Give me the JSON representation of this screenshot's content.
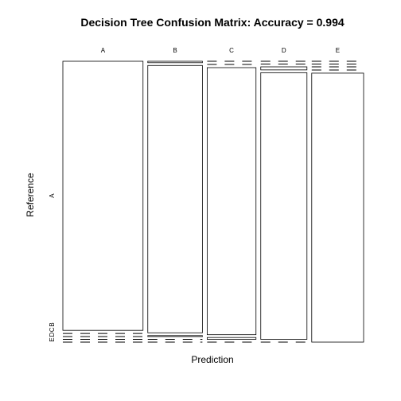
{
  "chart_data": {
    "type": "mosaic",
    "title": "Decision Tree Confusion Matrix: Accuracy = 0.994",
    "xlabel": "Prediction",
    "ylabel": "Reference",
    "prediction_levels": [
      "A",
      "B",
      "C",
      "D",
      "E"
    ],
    "reference_levels": [
      "A",
      "B",
      "C",
      "D",
      "E"
    ],
    "reference_tick_labels": [
      "A",
      "B",
      "C",
      "D",
      "E"
    ],
    "matrix": [
      [
        1671,
        6,
        0,
        0,
        0
      ],
      [
        4,
        1131,
        3,
        0,
        0
      ],
      [
        0,
        4,
        1010,
        11,
        0
      ],
      [
        0,
        0,
        7,
        954,
        3
      ],
      [
        0,
        0,
        0,
        0,
        1081
      ]
    ]
  }
}
